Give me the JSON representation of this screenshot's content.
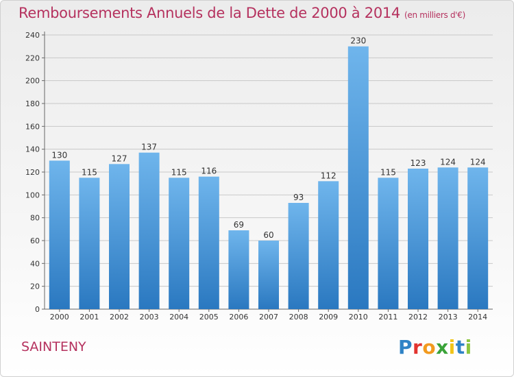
{
  "header": {
    "title": "Remboursements Annuels de la Dette de 2000 à 2014",
    "unit": "(en milliers d'€)"
  },
  "commune": "SAINTENY",
  "logo": {
    "letters": [
      "P",
      "r",
      "o",
      "x",
      "i",
      "t",
      "i"
    ],
    "colors": [
      "#2f83c6",
      "#e2342f",
      "#f29a1f",
      "#3aa339",
      "#f0c419",
      "#2f83c6",
      "#8cc63f"
    ]
  },
  "chart_data": {
    "type": "bar",
    "categories": [
      "2000",
      "2001",
      "2002",
      "2003",
      "2004",
      "2005",
      "2006",
      "2007",
      "2008",
      "2009",
      "2010",
      "2011",
      "2012",
      "2013",
      "2014"
    ],
    "values": [
      130,
      115,
      127,
      137,
      115,
      116,
      69,
      60,
      93,
      112,
      230,
      115,
      123,
      124,
      124
    ],
    "ylim": [
      0,
      240
    ],
    "yticks": [
      0,
      20,
      40,
      60,
      80,
      100,
      120,
      140,
      160,
      180,
      200,
      220,
      240
    ],
    "grid": true,
    "bar_color_top": "#6fb5ec",
    "bar_color_bottom": "#2a78c0"
  }
}
